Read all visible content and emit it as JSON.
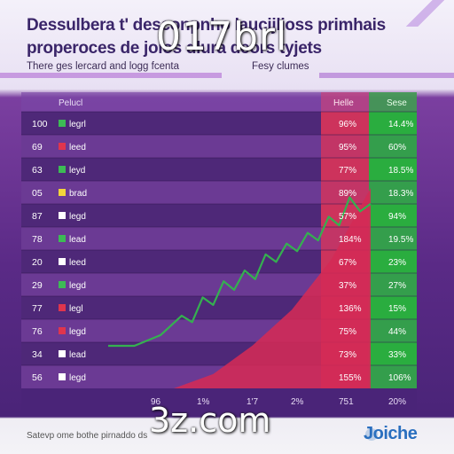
{
  "header": {
    "line1": "Dessulbera t' desconpnho laucijlioss primhais",
    "line2": "properoces de joios dlura deors tyjets",
    "overlay": "017brl",
    "subtitle": "There ges lercard and logg fcenta",
    "subtitle_right": "Fesy clumes"
  },
  "colors": {
    "band_dark": "#4e2878",
    "band_light": "#6b3a94",
    "red_zone": "#d8345a",
    "green_zone": "#28b43c",
    "line": "#35b050",
    "area": "#d42a55"
  },
  "chart_data": {
    "type": "table",
    "columns": [
      "Pelucl",
      "Helle",
      "Sese"
    ],
    "rows": [
      {
        "num": "100",
        "label": "legrl",
        "swatch": "#3dbb55",
        "red_val": "96%",
        "green_val": "14.4%"
      },
      {
        "num": "69",
        "label": "leed",
        "swatch": "#e0354d",
        "red_val": "95%",
        "green_val": "60%"
      },
      {
        "num": "63",
        "label": "leyd",
        "swatch": "#3dbb55",
        "red_val": "77%",
        "green_val": "18.5%"
      },
      {
        "num": "05",
        "label": "brad",
        "swatch": "#f2d43a",
        "red_val": "89%",
        "green_val": "18.3%"
      },
      {
        "num": "87",
        "label": "legd",
        "swatch": "#ffffff",
        "red_val": "57%",
        "green_val": "94%"
      },
      {
        "num": "78",
        "label": "lead",
        "swatch": "#3dbb55",
        "red_val": "184%",
        "green_val": "19.5%"
      },
      {
        "num": "20",
        "label": "leed",
        "swatch": "#ffffff",
        "red_val": "67%",
        "green_val": "23%"
      },
      {
        "num": "29",
        "label": "legd",
        "swatch": "#3dbb55",
        "red_val": "37%",
        "green_val": "27%"
      },
      {
        "num": "77",
        "label": "legl",
        "swatch": "#e0354d",
        "red_val": "136%",
        "green_val": "15%"
      },
      {
        "num": "76",
        "label": "legd",
        "swatch": "#e0354d",
        "red_val": "75%",
        "green_val": "44%"
      },
      {
        "num": "34",
        "label": "lead",
        "swatch": "#ffffff",
        "red_val": "73%",
        "green_val": "33%"
      },
      {
        "num": "56",
        "label": "legd",
        "swatch": "#ffffff",
        "red_val": "155%",
        "green_val": "106%"
      }
    ],
    "x_ticks": [
      "96",
      "1%",
      "1'7",
      "2%",
      "751",
      "20%"
    ],
    "line_series": {
      "x": [
        0,
        10,
        20,
        28,
        32,
        36,
        40,
        44,
        48,
        52,
        56,
        60,
        64,
        68,
        72,
        76,
        80,
        84,
        88,
        92,
        96,
        100
      ],
      "y": [
        0,
        0,
        10,
        28,
        22,
        45,
        38,
        60,
        52,
        70,
        62,
        85,
        78,
        95,
        88,
        105,
        98,
        120,
        112,
        138,
        125,
        132
      ],
      "ylim": [
        0,
        150
      ]
    },
    "area_series": {
      "x": [
        0,
        25,
        40,
        55,
        70,
        85,
        100
      ],
      "y": [
        0,
        0,
        10,
        30,
        55,
        90,
        140
      ],
      "ylim": [
        0,
        150
      ]
    }
  },
  "footer": {
    "text": "Satevp ome bothe pirnaddo ds",
    "overlay": "3z.com",
    "brand": "Joiche"
  }
}
